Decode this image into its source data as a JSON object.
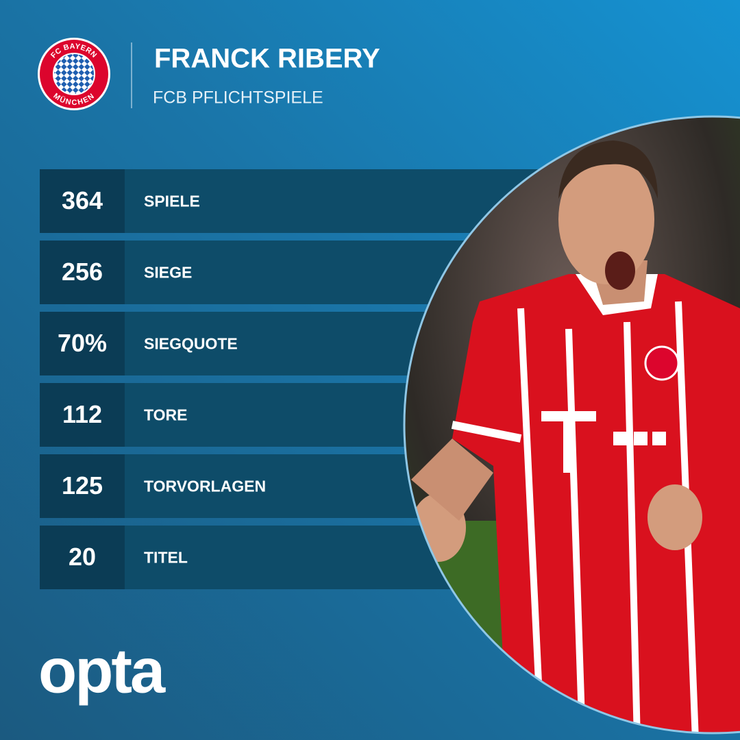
{
  "header": {
    "logo": {
      "top": "FC BAYERN",
      "bottom": "MÜNCHEN"
    },
    "title": "FRANCK RIBERY",
    "subtitle": "FCB PFLICHTSPIELE"
  },
  "stats": [
    {
      "value": "364",
      "label": "SPIELE"
    },
    {
      "value": "256",
      "label": "SIEGE"
    },
    {
      "value": "70%",
      "label": "SIEGQUOTE"
    },
    {
      "value": "112",
      "label": "TORE"
    },
    {
      "value": "125",
      "label": "TORVORLAGEN"
    },
    {
      "value": "20",
      "label": "TITEL"
    }
  ],
  "brand": "opta"
}
